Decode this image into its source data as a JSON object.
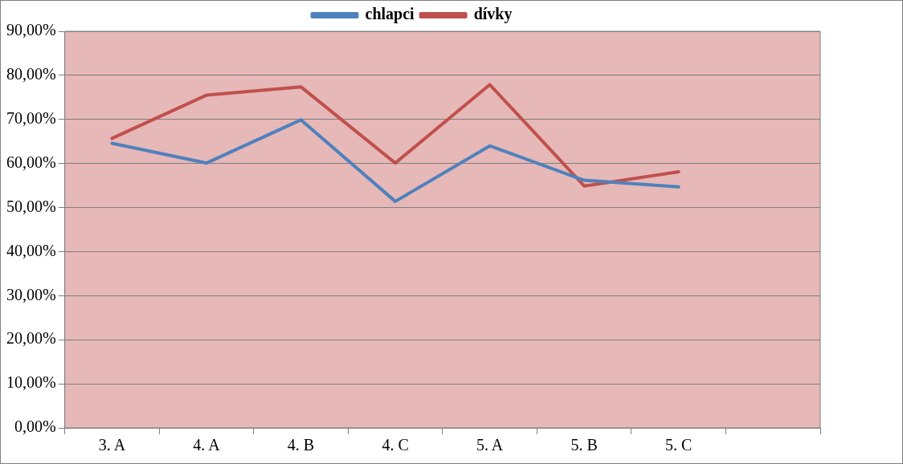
{
  "chart_data": {
    "type": "line",
    "categories": [
      "3. A",
      "4. A",
      "4. B",
      "4. C",
      "5. A",
      "5. B",
      "5. C",
      null
    ],
    "series": [
      {
        "name": "chlapci",
        "color": "#4f81bd",
        "values": [
          64.6,
          60.1,
          69.9,
          51.4,
          64.0,
          56.2,
          54.7,
          null
        ]
      },
      {
        "name": "dívky",
        "color": "#c0504d",
        "values": [
          65.7,
          75.5,
          77.4,
          60.1,
          77.9,
          54.9,
          58.1,
          null
        ]
      }
    ],
    "ylim": [
      0,
      90
    ],
    "yticks": [
      {
        "value": 0,
        "label": "0,00%"
      },
      {
        "value": 10,
        "label": "10,00%"
      },
      {
        "value": 20,
        "label": "20,00%"
      },
      {
        "value": 30,
        "label": "30,00%"
      },
      {
        "value": 40,
        "label": "40,00%"
      },
      {
        "value": 50,
        "label": "50,00%"
      },
      {
        "value": 60,
        "label": "60,00%"
      },
      {
        "value": 70,
        "label": "70,00%"
      },
      {
        "value": 80,
        "label": "80,00%"
      },
      {
        "value": 90,
        "label": "90,00%"
      }
    ],
    "grid": "y",
    "legend": "top",
    "marker": "none",
    "line_style": "solid"
  }
}
